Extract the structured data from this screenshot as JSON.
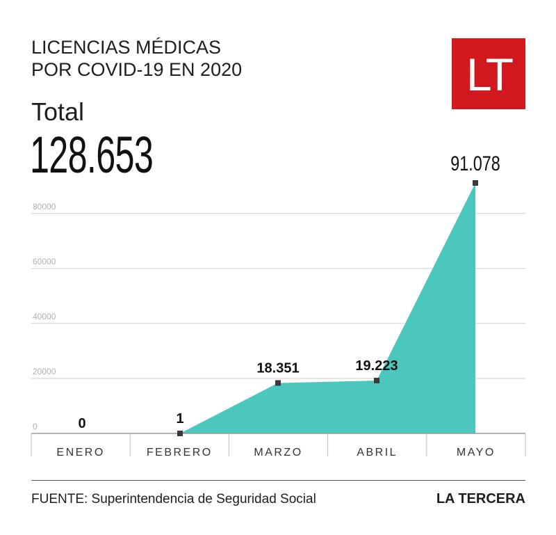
{
  "header": {
    "title_line1": "LICENCIAS MÉDICAS",
    "title_line2": "POR COVID-19 EN 2020",
    "total_label": "Total",
    "total_value": "128.653",
    "logo_text": "LT"
  },
  "footer": {
    "source": "FUENTE: Superintendencia de Seguridad Social",
    "brand": "LA TERCERA"
  },
  "colors": {
    "area_fill": "#4cc7bd",
    "logo_bg": "#d0181e",
    "marker": "#3a3a3a",
    "grid": "#cfcfcf"
  },
  "chart_data": {
    "type": "area",
    "categories": [
      "ENERO",
      "FEBRERO",
      "MARZO",
      "ABRIL",
      "MAYO"
    ],
    "values": [
      0,
      1,
      18351,
      19223,
      91078
    ],
    "data_labels": [
      "0",
      "1",
      "18.351",
      "19.223",
      "91.078"
    ],
    "yticks": [
      "0",
      "20000",
      "40000",
      "60000",
      "80000"
    ],
    "ytick_values": [
      0,
      20000,
      40000,
      60000,
      80000
    ],
    "ylim": [
      0,
      91078
    ],
    "grid": true,
    "legend": "none"
  }
}
